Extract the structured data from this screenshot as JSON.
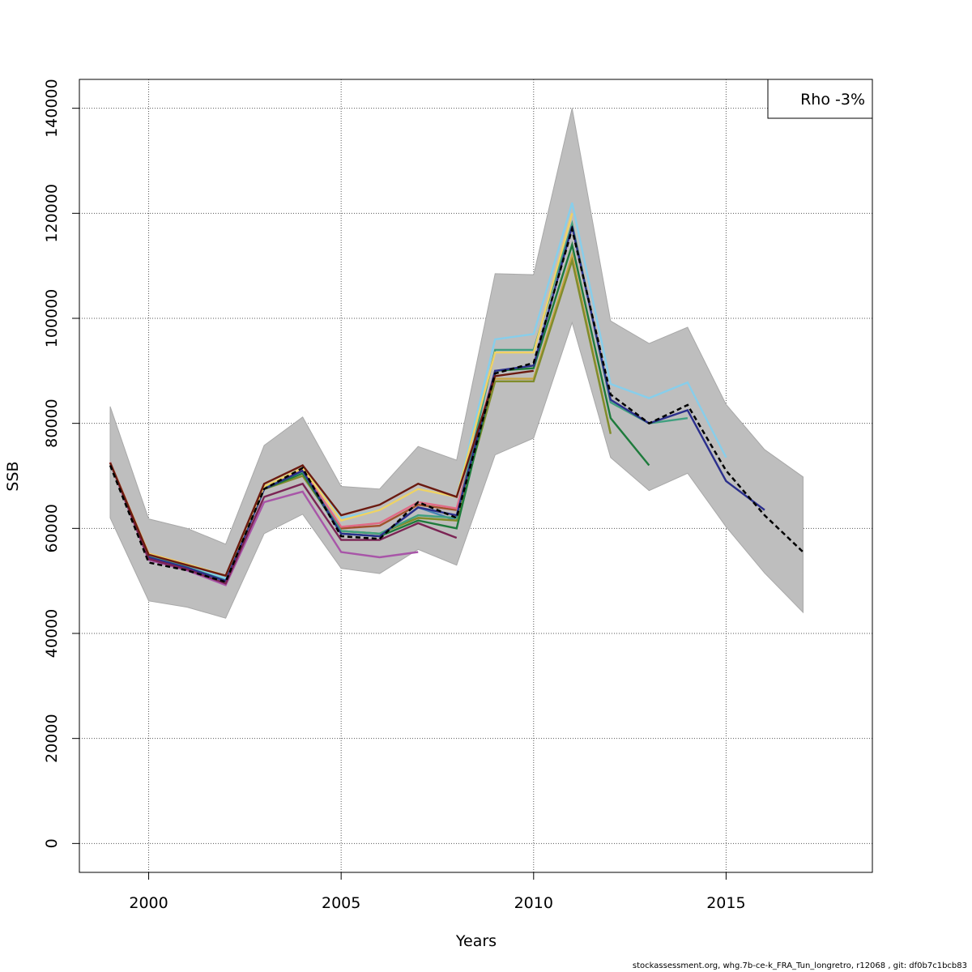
{
  "chart_data": {
    "type": "line",
    "xlabel": "Years",
    "ylabel": "SSB",
    "xlim": [
      1998.2,
      2018.8
    ],
    "ylim": [
      -5500,
      145500
    ],
    "xticks": [
      2000,
      2005,
      2010,
      2015
    ],
    "yticks": [
      0,
      20000,
      40000,
      60000,
      80000,
      100000,
      120000,
      140000
    ],
    "grid": true,
    "legend": {
      "position": "top-right",
      "text": "Rho -3%"
    },
    "ci_band": {
      "x": [
        1999,
        2000,
        2001,
        2002,
        2003,
        2004,
        2005,
        2006,
        2007,
        2008,
        2009,
        2010,
        2011,
        2012,
        2013,
        2014,
        2015,
        2016,
        2017
      ],
      "lower": [
        62000,
        46200,
        45000,
        42900,
        59000,
        62700,
        52400,
        51400,
        56000,
        53000,
        74000,
        77200,
        99200,
        73500,
        67200,
        70500,
        60300,
        51500,
        44000
      ],
      "upper": [
        83200,
        61800,
        60000,
        57000,
        75800,
        81200,
        68000,
        67500,
        75600,
        73000,
        108500,
        108300,
        140000,
        99500,
        95200,
        98300,
        83600,
        75000,
        69800
      ]
    },
    "series": [
      {
        "color": "#4682b4",
        "x": [
          1999,
          2000,
          2001,
          2002,
          2003,
          2004,
          2005,
          2006,
          2007,
          2008
        ],
        "y": [
          72500,
          54500,
          52500,
          49800,
          67500,
          71000,
          59000,
          58500,
          64000,
          61500
        ]
      },
      {
        "color": "#a0522d",
        "x": [
          1999,
          2000,
          2001,
          2002,
          2003,
          2004,
          2005,
          2006,
          2007,
          2008
        ],
        "y": [
          72500,
          55000,
          53000,
          50500,
          68000,
          70500,
          60000,
          60500,
          64500,
          63500
        ]
      },
      {
        "color": "#e16a86",
        "x": [
          1999,
          2000,
          2001,
          2002,
          2003,
          2004,
          2005,
          2006,
          2007,
          2008,
          2009
        ],
        "y": [
          72600,
          55200,
          53200,
          50300,
          68000,
          71200,
          60300,
          61000,
          65000,
          63800,
          90000
        ]
      },
      {
        "color": "#c7a443",
        "x": [
          1999,
          2000,
          2001,
          2002,
          2003,
          2004,
          2005,
          2006,
          2007,
          2008,
          2009,
          2010,
          2011,
          2012
        ],
        "y": [
          72500,
          55000,
          53000,
          50500,
          67500,
          70000,
          59500,
          59000,
          62000,
          61500,
          88500,
          88500,
          112000,
          78000
        ]
      },
      {
        "color": "#808c2c",
        "x": [
          1999,
          2000,
          2001,
          2002,
          2003,
          2004,
          2005,
          2006,
          2007,
          2008,
          2009,
          2010,
          2011,
          2012
        ],
        "y": [
          72500,
          55000,
          53000,
          50500,
          67500,
          70000,
          59500,
          59000,
          62000,
          61500,
          88000,
          88000,
          111000,
          78000
        ]
      },
      {
        "color": "#1e7b3c",
        "x": [
          1999,
          2000,
          2001,
          2002,
          2003,
          2004,
          2005,
          2006,
          2007,
          2008,
          2009,
          2010,
          2011,
          2012,
          2013
        ],
        "y": [
          72500,
          54500,
          52500,
          50000,
          67500,
          70500,
          59000,
          58500,
          61500,
          60000,
          90000,
          90500,
          114000,
          81000,
          72000
        ]
      },
      {
        "color": "#40a080",
        "x": [
          1999,
          2000,
          2001,
          2002,
          2003,
          2004,
          2005,
          2006,
          2007,
          2008,
          2009,
          2010,
          2011,
          2012,
          2013,
          2014
        ],
        "y": [
          72500,
          54800,
          52800,
          50200,
          67800,
          70800,
          59500,
          59000,
          62500,
          62000,
          94000,
          94000,
          118000,
          84000,
          80000,
          81000
        ]
      },
      {
        "color": "#87ceeb",
        "x": [
          1999,
          2000,
          2001,
          2002,
          2003,
          2004,
          2005,
          2006,
          2007,
          2008,
          2009,
          2010,
          2011,
          2012,
          2013,
          2014,
          2015
        ],
        "y": [
          72500,
          55000,
          53000,
          50500,
          68000,
          71500,
          62000,
          63500,
          67500,
          66000,
          96000,
          97000,
          122000,
          87500,
          84800,
          87800,
          73500
        ]
      },
      {
        "color": "#2b2f8c",
        "x": [
          1999,
          2000,
          2001,
          2002,
          2003,
          2004,
          2005,
          2006,
          2007,
          2008,
          2009,
          2010,
          2011,
          2012,
          2013,
          2014,
          2015,
          2016
        ],
        "y": [
          72500,
          54500,
          52500,
          50000,
          67500,
          71000,
          59000,
          58500,
          64000,
          62500,
          90000,
          91000,
          117500,
          84500,
          80000,
          82500,
          69000,
          63500
        ]
      },
      {
        "color": "#a855a8",
        "x": [
          1999,
          2000,
          2001,
          2002,
          2003,
          2004,
          2005,
          2006,
          2007
        ],
        "y": [
          72500,
          54000,
          52000,
          49200,
          65000,
          67000,
          55500,
          54500,
          55500
        ]
      },
      {
        "color": "#7b2454",
        "x": [
          1999,
          2000,
          2001,
          2002,
          2003,
          2004,
          2005,
          2006,
          2007,
          2008
        ],
        "y": [
          72500,
          54200,
          52200,
          49500,
          66000,
          68500,
          57800,
          57800,
          61000,
          58200
        ]
      },
      {
        "color": "#f0d264",
        "x": [
          1999,
          2000,
          2001,
          2002,
          2003,
          2004,
          2005,
          2006,
          2007,
          2008,
          2009,
          2010,
          2011
        ],
        "y": [
          72500,
          55200,
          53200,
          51000,
          68000,
          71500,
          61500,
          63500,
          67500,
          66000,
          93500,
          93500,
          120000
        ]
      },
      {
        "color": "#6b1a10",
        "x": [
          1999,
          2000,
          2001,
          2002,
          2003,
          2004,
          2005,
          2006,
          2007,
          2008,
          2009,
          2010
        ],
        "y": [
          72500,
          55000,
          53000,
          51000,
          68500,
          72000,
          62500,
          64500,
          68500,
          66000,
          89000,
          90000
        ]
      },
      {
        "color": "#000000",
        "dashed": true,
        "x": [
          1999,
          2000,
          2001,
          2002,
          2003,
          2004,
          2005,
          2006,
          2007,
          2008,
          2009,
          2010,
          2011,
          2012,
          2013,
          2014,
          2015,
          2016,
          2017
        ],
        "y": [
          72000,
          53500,
          52000,
          49800,
          67500,
          71500,
          58500,
          58000,
          65000,
          62000,
          89500,
          91500,
          117000,
          85500,
          80000,
          83500,
          71000,
          62500,
          55500
        ]
      }
    ]
  },
  "footer": "stockassessment.org, whg.7b-ce-k_FRA_Tun_longretro, r12068 , git: df0b7c1bcb83"
}
